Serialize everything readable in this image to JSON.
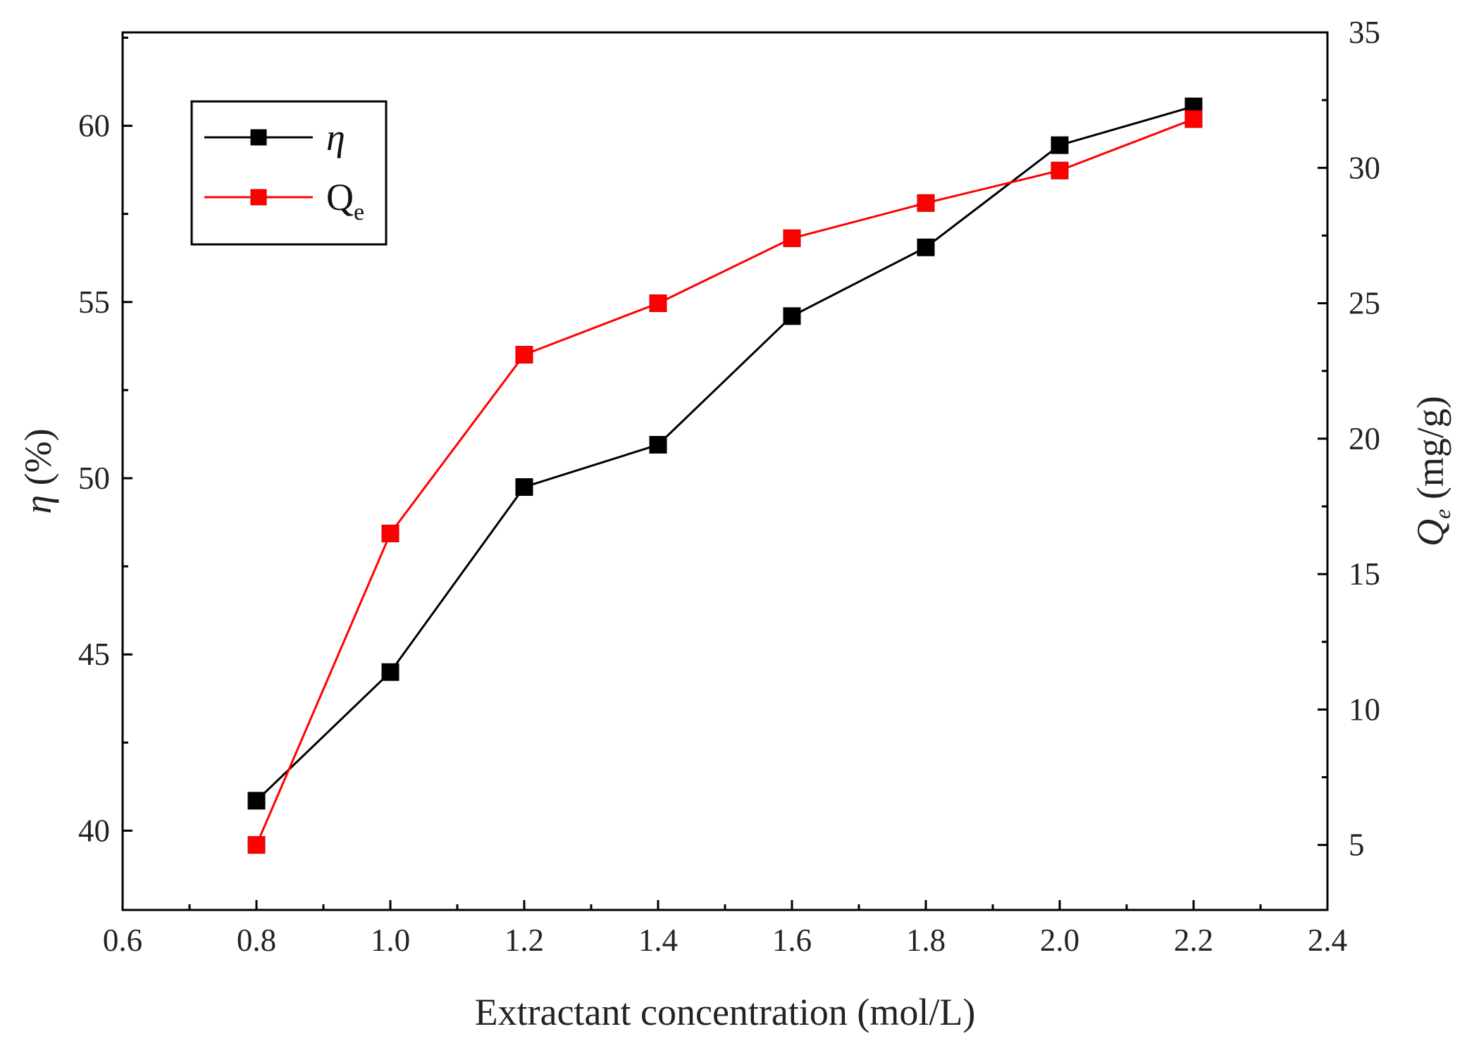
{
  "chart_data": {
    "type": "line",
    "x": [
      0.8,
      1.0,
      1.2,
      1.4,
      1.6,
      1.8,
      2.0,
      2.2
    ],
    "xlabel": "Extractant concentration (mol/L)",
    "xlim": [
      0.6,
      2.4
    ],
    "xticks": [
      "0.6",
      "0.8",
      "1.0",
      "1.2",
      "1.4",
      "1.6",
      "1.8",
      "2.0",
      "2.2",
      "2.4"
    ],
    "ylabel_left": {
      "symbol": "η",
      "unit": " (%)"
    },
    "ylim_left": [
      37.75,
      62.65
    ],
    "yticks_left": [
      "40",
      "45",
      "50",
      "55",
      "60"
    ],
    "ylabel_right": {
      "symbol": "Q",
      "subscript": "e",
      "unit": " (mg/g)"
    },
    "ylim_right": [
      2.6,
      35
    ],
    "yticks_right": [
      "5",
      "10",
      "15",
      "20",
      "25",
      "30",
      "35"
    ],
    "grid": false,
    "legend_position": "top-left",
    "series": [
      {
        "name": "η",
        "legend_label": "η",
        "axis": "left",
        "color": "#000000",
        "marker": "square",
        "values": [
          40.85,
          44.5,
          49.75,
          50.95,
          54.6,
          56.55,
          59.45,
          60.55
        ]
      },
      {
        "name": "Qe",
        "legend_label": "Q",
        "legend_subscript": "e",
        "axis": "right",
        "color": "#ff0000",
        "marker": "square",
        "values": [
          5.0,
          16.5,
          23.1,
          25.0,
          27.4,
          28.7,
          29.9,
          31.8
        ]
      }
    ]
  }
}
